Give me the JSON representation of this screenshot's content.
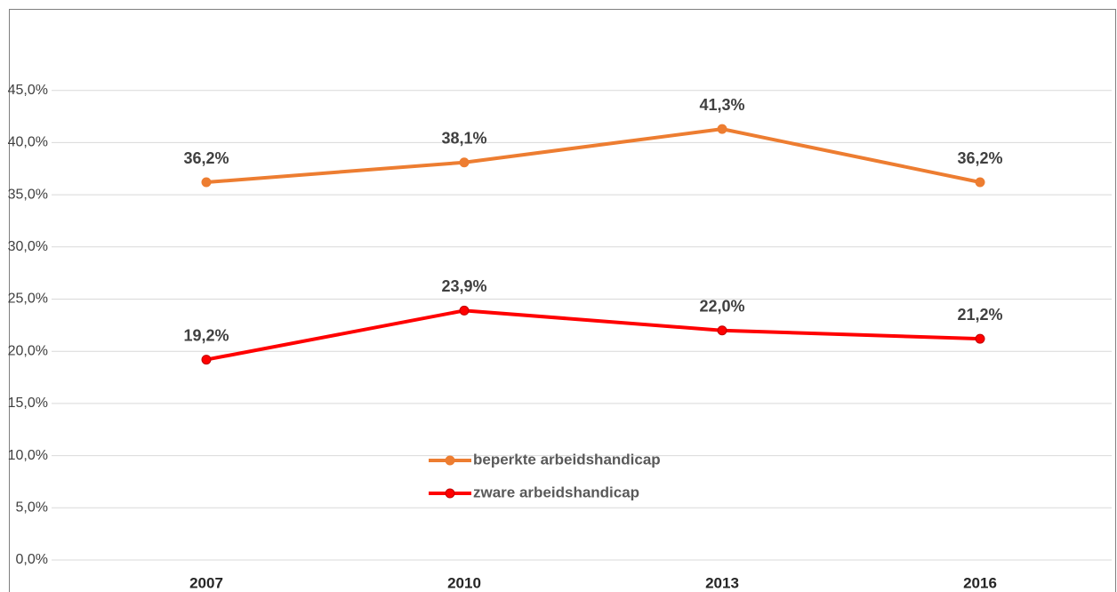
{
  "chart_data": {
    "type": "line",
    "categories": [
      "2007",
      "2010",
      "2013",
      "2016"
    ],
    "series": [
      {
        "name": "beperkte arbeidshandicap",
        "color": "#ed7d31",
        "values": [
          36.2,
          38.1,
          41.3,
          36.2
        ],
        "value_labels": [
          "36,2%",
          "38,1%",
          "41,3%",
          "36,2%"
        ]
      },
      {
        "name": "zware arbeidshandicap",
        "color": "#ff0000",
        "values": [
          19.2,
          23.9,
          22.0,
          21.2
        ],
        "value_labels": [
          "19,2%",
          "23,9%",
          "22,0%",
          "21,2%"
        ]
      }
    ],
    "ylim": [
      0,
      50
    ],
    "yticks": [
      {
        "value": 0,
        "label": "0,0%"
      },
      {
        "value": 5,
        "label": "5,0%"
      },
      {
        "value": 10,
        "label": "10,0%"
      },
      {
        "value": 15,
        "label": "15,0%"
      },
      {
        "value": 20,
        "label": "20,0%"
      },
      {
        "value": 25,
        "label": "25,0%"
      },
      {
        "value": 30,
        "label": "30,0%"
      },
      {
        "value": 35,
        "label": "35,0%"
      },
      {
        "value": 40,
        "label": "40,0%"
      },
      {
        "value": 45,
        "label": "45,0%"
      }
    ],
    "grid": true
  }
}
